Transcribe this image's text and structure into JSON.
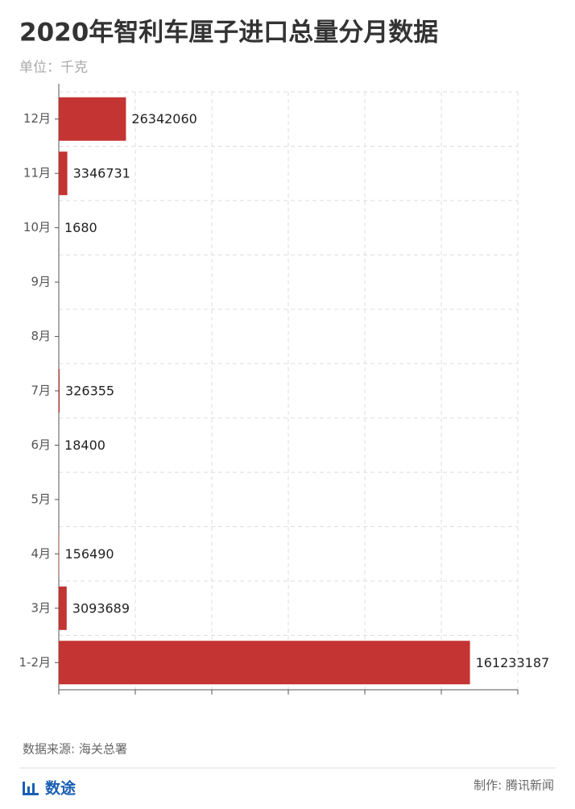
{
  "chart_data": {
    "type": "hbar",
    "title": "2020年智利车厘子进口总量分月数据",
    "subtitle": "单位：千克",
    "categories": [
      "12月",
      "11月",
      "10月",
      "9月",
      "8月",
      "7月",
      "6月",
      "5月",
      "4月",
      "3月",
      "1-2月"
    ],
    "values": [
      26342060,
      3346731,
      1680,
      null,
      null,
      326355,
      18400,
      null,
      156490,
      3093689,
      161233187
    ],
    "color": "#c33432",
    "xlim": [
      0,
      180000000
    ],
    "xticks": [
      0,
      30000000,
      60000000,
      90000000,
      120000000,
      150000000,
      180000000
    ],
    "grid": true
  },
  "footer": {
    "source": "数据来源: 海关总署",
    "logo": "数途",
    "credit": "制作: 腾讯新闻"
  }
}
